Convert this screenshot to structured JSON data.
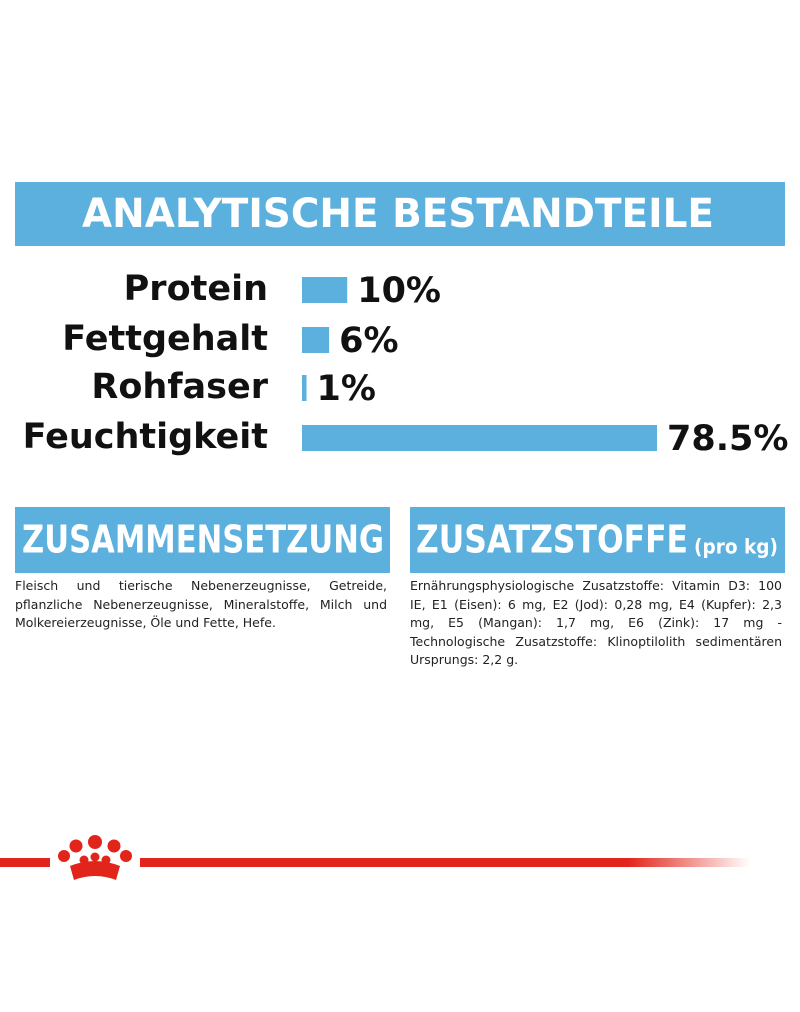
{
  "chart_data": {
    "type": "bar",
    "orientation": "horizontal",
    "title": "ANALYTISCHE BESTANDTEILE",
    "categories": [
      "Protein",
      "Fettgehalt",
      "Rohfaser",
      "Feuchtigkeit"
    ],
    "values": [
      10,
      6,
      1,
      78.5
    ],
    "value_labels": [
      "10%",
      "6%",
      "1%",
      "78.5%"
    ],
    "color": "#5bb0de"
  },
  "sections": [
    {
      "heading": "ZUSAMMENSETZUNG",
      "text": "Fleisch und tierische Nebenerzeugnisse, Getreide, pflanzliche Nebenerzeugnisse, Mineralstoffe, Milch und Molkereierzeugnisse, Öle und Fette, Hefe."
    },
    {
      "heading": "ZUSATZSTOFFE",
      "heading_note": "(pro kg)",
      "text": "Ernährungsphysiologische Zusatzstoffe: Vitamin D3: 100 IE, E1 (Eisen): 6 mg, E2 (Jod): 0,28 mg, E4 (Kupfer): 2,3 mg, E5 (Mangan): 1,7 mg, E6 (Zink): 17 mg - Technologische Zusatzstoffe: Klinoptilolith sedimentären Ursprungs: 2,2 g."
    }
  ]
}
